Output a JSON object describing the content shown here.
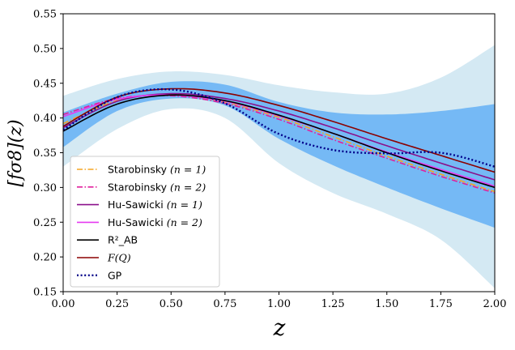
{
  "chart_data": {
    "type": "line",
    "xlabel": "z",
    "ylabel": "[fσ8](z)",
    "xlim": [
      0.0,
      2.0
    ],
    "ylim": [
      0.15,
      0.55
    ],
    "x_ticks": [
      0.0,
      0.25,
      0.5,
      0.75,
      1.0,
      1.25,
      1.5,
      1.75,
      2.0
    ],
    "x_tick_labels": [
      "0.00",
      "0.25",
      "0.50",
      "0.75",
      "1.00",
      "1.25",
      "1.50",
      "1.75",
      "2.00"
    ],
    "y_ticks": [
      0.15,
      0.2,
      0.25,
      0.3,
      0.35,
      0.4,
      0.45,
      0.5,
      0.55
    ],
    "y_tick_labels": [
      "0.15",
      "0.20",
      "0.25",
      "0.30",
      "0.35",
      "0.40",
      "0.45",
      "0.50",
      "0.55"
    ],
    "grid": false,
    "legend_position": "lower-left",
    "bands": [
      {
        "name": "GP 2σ",
        "color": "#d4e9f3",
        "x": [
          0.0,
          0.25,
          0.5,
          0.75,
          1.0,
          1.25,
          1.5,
          1.75,
          2.0
        ],
        "upper": [
          0.432,
          0.456,
          0.467,
          0.462,
          0.447,
          0.437,
          0.435,
          0.458,
          0.505
        ],
        "lower": [
          0.33,
          0.384,
          0.413,
          0.4,
          0.335,
          0.292,
          0.262,
          0.225,
          0.155
        ]
      },
      {
        "name": "GP 1σ",
        "color": "#75b9f5",
        "x": [
          0.0,
          0.25,
          0.5,
          0.75,
          1.0,
          1.25,
          1.5,
          1.75,
          2.0
        ],
        "upper": [
          0.408,
          0.435,
          0.452,
          0.448,
          0.423,
          0.408,
          0.405,
          0.41,
          0.42
        ],
        "lower": [
          0.358,
          0.41,
          0.428,
          0.418,
          0.37,
          0.332,
          0.3,
          0.27,
          0.242
        ]
      }
    ],
    "series": [
      {
        "name": "Starobinsky (n = 1)",
        "color": "#f5a623",
        "style": "dashdot",
        "x": [
          0.0,
          0.25,
          0.5,
          0.75,
          1.0,
          1.25,
          1.5,
          1.75,
          2.0
        ],
        "values": [
          0.392,
          0.425,
          0.434,
          0.423,
          0.401,
          0.373,
          0.345,
          0.319,
          0.294
        ]
      },
      {
        "name": "Starobinsky (n = 2)",
        "color": "#e0209c",
        "style": "dashdot",
        "x": [
          0.0,
          0.25,
          0.5,
          0.75,
          1.0,
          1.25,
          1.5,
          1.75,
          2.0
        ],
        "values": [
          0.405,
          0.428,
          0.432,
          0.421,
          0.398,
          0.369,
          0.342,
          0.316,
          0.292
        ]
      },
      {
        "name": "Hu-Sawicki (n = 1)",
        "color": "#8b108b",
        "style": "solid",
        "x": [
          0.0,
          0.25,
          0.5,
          0.75,
          1.0,
          1.25,
          1.5,
          1.75,
          2.0
        ],
        "values": [
          0.386,
          0.424,
          0.435,
          0.428,
          0.41,
          0.386,
          0.36,
          0.335,
          0.311
        ]
      },
      {
        "name": "Hu-Sawicki (n = 2)",
        "color": "#e63bf0",
        "style": "solid",
        "x": [
          0.0,
          0.25,
          0.5,
          0.75,
          1.0,
          1.25,
          1.5,
          1.75,
          2.0
        ],
        "values": [
          0.402,
          0.427,
          0.433,
          0.424,
          0.403,
          0.378,
          0.351,
          0.326,
          0.302
        ]
      },
      {
        "name": "R2_AB",
        "color": "#000000",
        "style": "solid",
        "x": [
          0.0,
          0.25,
          0.5,
          0.75,
          1.0,
          1.25,
          1.5,
          1.75,
          2.0
        ],
        "values": [
          0.381,
          0.42,
          0.433,
          0.425,
          0.404,
          0.378,
          0.35,
          0.324,
          0.3
        ]
      },
      {
        "name": "F(Q)",
        "color": "#8b0000",
        "style": "solid",
        "x": [
          0.0,
          0.25,
          0.5,
          0.75,
          1.0,
          1.25,
          1.5,
          1.75,
          2.0
        ],
        "values": [
          0.388,
          0.43,
          0.442,
          0.436,
          0.418,
          0.395,
          0.37,
          0.346,
          0.322
        ]
      },
      {
        "name": "GP",
        "color": "#00008b",
        "style": "dotted",
        "x": [
          0.0,
          0.25,
          0.5,
          0.75,
          1.0,
          1.25,
          1.5,
          1.75,
          2.0
        ],
        "values": [
          0.383,
          0.43,
          0.441,
          0.421,
          0.377,
          0.354,
          0.349,
          0.35,
          0.33
        ]
      }
    ],
    "legend": [
      {
        "text": "Starobinsky",
        "math": "(n = 1)",
        "series": 0
      },
      {
        "text": "Starobinsky",
        "math": "(n = 2)",
        "series": 1
      },
      {
        "text": "Hu-Sawicki",
        "math": "(n = 1)",
        "series": 2
      },
      {
        "text": "Hu-Sawicki",
        "math": "(n = 2)",
        "series": 3
      },
      {
        "text": "R²_AB",
        "math": "",
        "series": 4
      },
      {
        "text": "",
        "math": "F(Q)",
        "series": 5
      },
      {
        "text": "GP",
        "math": "",
        "series": 6
      }
    ]
  }
}
